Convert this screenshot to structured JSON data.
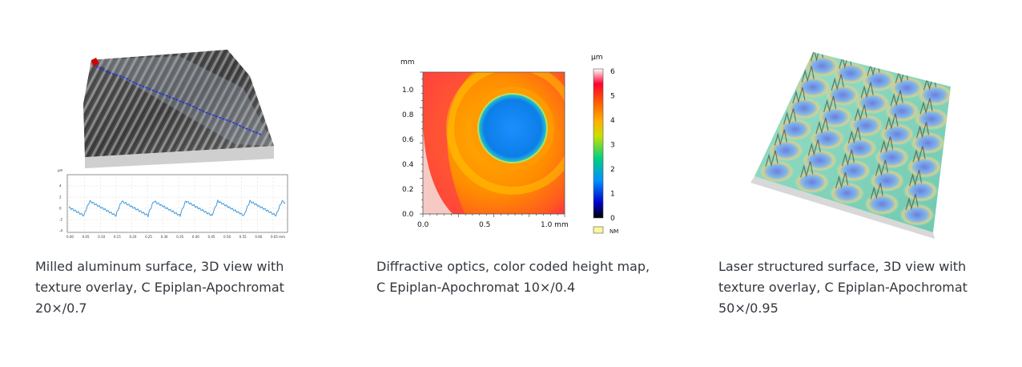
{
  "cards": [
    {
      "caption": "Milled aluminum surface, 3D view with texture overlay, C Epiplan-Apochromat 20×/0.7",
      "profile": {
        "y_unit": "µm",
        "y_ticks": [
          "4",
          "2",
          "0",
          "-2",
          "-4"
        ],
        "x_ticks": [
          "0.00",
          "0.05",
          "0.10",
          "0.15",
          "0.20",
          "0.25",
          "0.30",
          "0.35",
          "0.40",
          "0.45",
          "0.50",
          "0.55",
          "0.60",
          "0.65 mm"
        ]
      }
    },
    {
      "caption": "Diffractive optics, color coded height map, C Epiplan-Apochromat 10×/0.4",
      "map": {
        "y_unit": "mm",
        "y_ticks": [
          "1.0",
          "0.8",
          "0.6",
          "0.4",
          "0.2",
          "0.0"
        ],
        "x_ticks": [
          "0.0",
          "0.5",
          "1.0 mm"
        ],
        "colorbar_unit": "µm",
        "colorbar_ticks": [
          "6",
          "5",
          "4",
          "3",
          "2",
          "1",
          "0"
        ],
        "nm_label": "NM"
      }
    },
    {
      "caption": "Laser structured surface, 3D view with texture overlay, C Epiplan-Apochromat 50×/0.95"
    }
  ]
}
